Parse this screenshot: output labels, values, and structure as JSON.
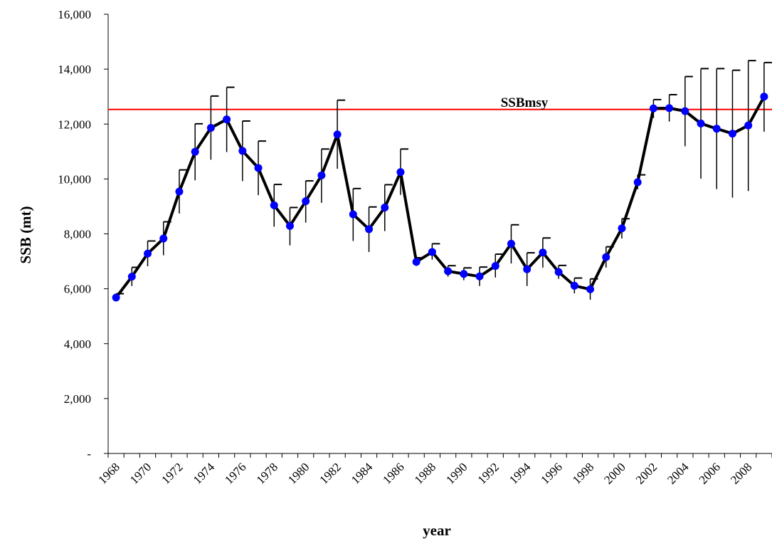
{
  "chart_data": {
    "type": "line",
    "xlabel": "year",
    "ylabel": "SSB (mt)",
    "ylim": [
      0,
      16000
    ],
    "y_ticks": [
      0,
      2000,
      4000,
      6000,
      8000,
      10000,
      12000,
      14000,
      16000
    ],
    "y_tick_labels": [
      "-",
      "2,000",
      "4,000",
      "6,000",
      "8,000",
      "10,000",
      "12,000",
      "14,000",
      "16,000"
    ],
    "x_ticks": [
      1968,
      1970,
      1972,
      1974,
      1976,
      1978,
      1980,
      1982,
      1984,
      1986,
      1988,
      1990,
      1992,
      1994,
      1996,
      1998,
      2000,
      2002,
      2004,
      2006,
      2008
    ],
    "x_tick_labels": [
      "1968",
      "1970",
      "1972",
      "1974",
      "1976",
      "1978",
      "1980",
      "1982",
      "1984",
      "1986",
      "1988",
      "1990",
      "1992",
      "1994",
      "1996",
      "1998",
      "2000",
      "2002",
      "2004",
      "2006",
      "2008"
    ],
    "grid": false,
    "reference_line": {
      "label": "SSBmsy",
      "value": 12530,
      "color": "#ff0000"
    },
    "series": [
      {
        "color": "#0000ff",
        "line_color": "#000000",
        "x": [
          1968,
          1969,
          1970,
          1971,
          1972,
          1973,
          1974,
          1975,
          1976,
          1977,
          1978,
          1979,
          1980,
          1981,
          1982,
          1983,
          1984,
          1985,
          1986,
          1987,
          1988,
          1989,
          1990,
          1991,
          1992,
          1993,
          1994,
          1995,
          1996,
          1997,
          1998,
          1999,
          2000,
          2001,
          2002,
          2003,
          2004,
          2005,
          2006,
          2007,
          2008,
          2009
        ],
        "y": [
          5680,
          6440,
          7280,
          7830,
          9540,
          10990,
          11860,
          12170,
          11020,
          10400,
          9040,
          8290,
          9190,
          10130,
          11620,
          8710,
          8170,
          8960,
          10250,
          6980,
          7340,
          6640,
          6540,
          6450,
          6830,
          7640,
          6710,
          7320,
          6610,
          6110,
          5980,
          7150,
          8200,
          9880,
          12570,
          12580,
          12470,
          12020,
          11830,
          11650,
          11950,
          13000
        ],
        "y_upper": [
          5820,
          6780,
          7740,
          8440,
          10330,
          12010,
          13020,
          13340,
          12110,
          11380,
          9800,
          8960,
          9930,
          11090,
          12870,
          9650,
          8980,
          9790,
          11090,
          7130,
          7640,
          6840,
          6760,
          6790,
          7260,
          8330,
          7310,
          7850,
          6850,
          6390,
          6360,
          7530,
          8550,
          10150,
          12890,
          13070,
          13730,
          14020,
          14020,
          13960,
          14310,
          14240
        ],
        "y_lower": [
          5550,
          6100,
          6820,
          7220,
          8740,
          9950,
          10700,
          10980,
          9920,
          9410,
          8260,
          7580,
          8410,
          9130,
          10370,
          7740,
          7340,
          8100,
          9420,
          6830,
          7060,
          6440,
          6310,
          6100,
          6410,
          6920,
          6100,
          6770,
          6360,
          5830,
          5600,
          6770,
          7830,
          9620,
          12220,
          12090,
          11190,
          10010,
          9630,
          9320,
          9560,
          11720
        ]
      }
    ]
  }
}
